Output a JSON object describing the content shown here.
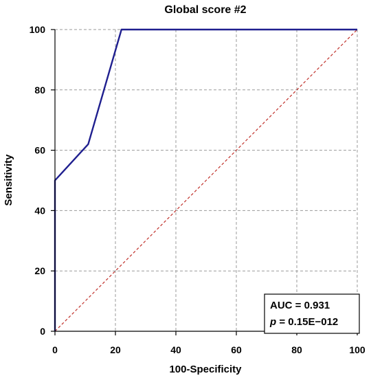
{
  "chart_data": {
    "type": "line",
    "title": "Global score #2",
    "xlabel": "100-Specificity",
    "ylabel": "Sensitivity",
    "xlim": [
      0,
      100
    ],
    "ylim": [
      0,
      100
    ],
    "x_ticks": [
      "0",
      "20",
      "40",
      "60",
      "80",
      "100"
    ],
    "y_ticks": [
      "0",
      "20",
      "40",
      "60",
      "80",
      "100"
    ],
    "grid": true,
    "series": [
      {
        "color": "#1f1f8f",
        "points": [
          {
            "x": 0,
            "y": 0
          },
          {
            "x": 0,
            "y": 50
          },
          {
            "x": 11,
            "y": 62
          },
          {
            "x": 22,
            "y": 100
          },
          {
            "x": 100,
            "y": 100
          }
        ]
      }
    ],
    "reference_line": {
      "color": "#c0302a",
      "style": "dashed",
      "points": [
        {
          "x": 0,
          "y": 0
        },
        {
          "x": 100,
          "y": 100
        }
      ]
    },
    "annotations": {
      "auc": "AUC = 0.931",
      "p_prefix": "p",
      "p_value": " = 0.15E−012"
    }
  }
}
